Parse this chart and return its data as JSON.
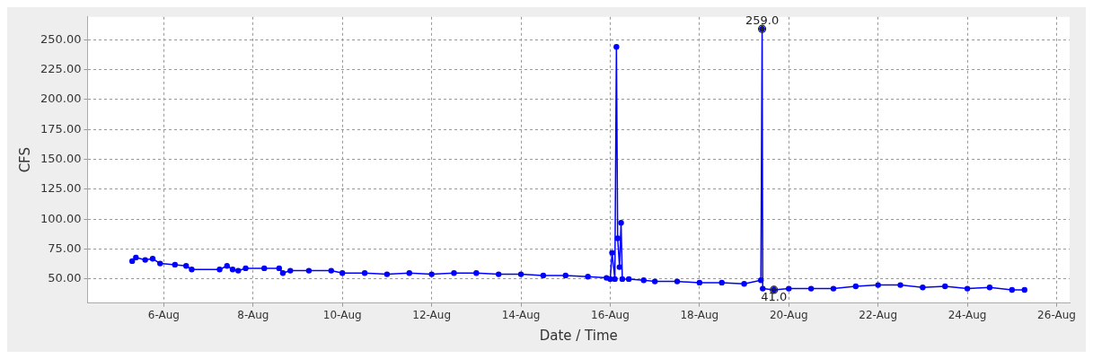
{
  "chart_data": {
    "type": "line",
    "xlabel": "Date / Time",
    "ylabel": "CFS",
    "x": [
      "--08-05T07:00",
      "--08-05T09:00",
      "--08-05T14:00",
      "--08-05T18:00",
      "--08-05T22:00",
      "--08-06T06:00",
      "--08-06T12:00",
      "--08-06T15:00",
      "--08-07T06:00",
      "--08-07T10:00",
      "--08-07T13:00",
      "--08-07T16:00",
      "--08-07T20:00",
      "--08-08T06:00",
      "--08-08T14:00",
      "--08-08T16:00",
      "--08-08T20:00",
      "--08-09T06:00",
      "--08-09T18:00",
      "--08-10T00:00",
      "--08-10T12:00",
      "--08-11T00:00",
      "--08-11T12:00",
      "--08-12T00:00",
      "--08-12T12:00",
      "--08-13T00:00",
      "--08-13T12:00",
      "--08-14T00:00",
      "--08-14T12:00",
      "--08-15T00:00",
      "--08-15T12:00",
      "--08-15T22:00",
      "--08-16T00:00",
      "--08-16T01:00",
      "--08-16T02:30",
      "--08-16T03:20",
      "--08-16T04:00",
      "--08-16T05:00",
      "--08-16T05:50",
      "--08-16T06:30",
      "--08-16T10:00",
      "--08-16T18:00",
      "--08-17T00:00",
      "--08-17T12:00",
      "--08-18T00:00",
      "--08-18T12:00",
      "--08-19T00:00",
      "--08-19T09:00",
      "--08-19T09:40",
      "--08-19T10:00",
      "--08-19T16:00",
      "--08-20T00:00",
      "--08-20T12:00",
      "--08-21T00:00",
      "--08-21T12:00",
      "--08-22T00:00",
      "--08-22T12:00",
      "--08-23T00:00",
      "--08-23T12:00",
      "--08-24T00:00",
      "--08-24T12:00",
      "--08-25T00:00",
      "--08-25T06:45"
    ],
    "series": [
      {
        "color": "#0000ff",
        "values": [
          65,
          68,
          66,
          67,
          63,
          62,
          61,
          58,
          58,
          61,
          58,
          57,
          59,
          59,
          59,
          55,
          57,
          57,
          57,
          55,
          55,
          54,
          55,
          54,
          55,
          55,
          54,
          54,
          53,
          53,
          52,
          51,
          50,
          72,
          50,
          244,
          84,
          60,
          97,
          50,
          50,
          49,
          48,
          48,
          47,
          47,
          46,
          49,
          259,
          42,
          41,
          42,
          42,
          42,
          44,
          45,
          45,
          43,
          44,
          42,
          43,
          41,
          41
        ]
      }
    ],
    "xlim": [
      "--08-04T07:00",
      "--08-26T07:00"
    ],
    "xticks": [
      {
        "value": "--08-06",
        "label": "6-Aug"
      },
      {
        "value": "--08-08",
        "label": "8-Aug"
      },
      {
        "value": "--08-10",
        "label": "10-Aug"
      },
      {
        "value": "--08-12",
        "label": "12-Aug"
      },
      {
        "value": "--08-14",
        "label": "14-Aug"
      },
      {
        "value": "--08-16",
        "label": "16-Aug"
      },
      {
        "value": "--08-18",
        "label": "18-Aug"
      },
      {
        "value": "--08-20",
        "label": "20-Aug"
      },
      {
        "value": "--08-22",
        "label": "22-Aug"
      },
      {
        "value": "--08-24",
        "label": "24-Aug"
      },
      {
        "value": "--08-26",
        "label": "26-Aug"
      }
    ],
    "ylim": [
      30,
      269
    ],
    "yticks": [
      {
        "value": 50,
        "label": "50.00"
      },
      {
        "value": 75,
        "label": "75.00"
      },
      {
        "value": 100,
        "label": "100.00"
      },
      {
        "value": 125,
        "label": "125.00"
      },
      {
        "value": 150,
        "label": "150.00"
      },
      {
        "value": 175,
        "label": "175.00"
      },
      {
        "value": 200,
        "label": "200.00"
      },
      {
        "value": 225,
        "label": "225.00"
      },
      {
        "value": 250,
        "label": "250.00"
      }
    ],
    "annotations": [
      {
        "text": "259.0",
        "x": "--08-19T09:40",
        "y": 259
      },
      {
        "text": "41.0",
        "x": "--08-19T16:00",
        "y": 41
      }
    ],
    "grid": true,
    "legend": false,
    "marker": "circle",
    "line_style": "solid"
  }
}
